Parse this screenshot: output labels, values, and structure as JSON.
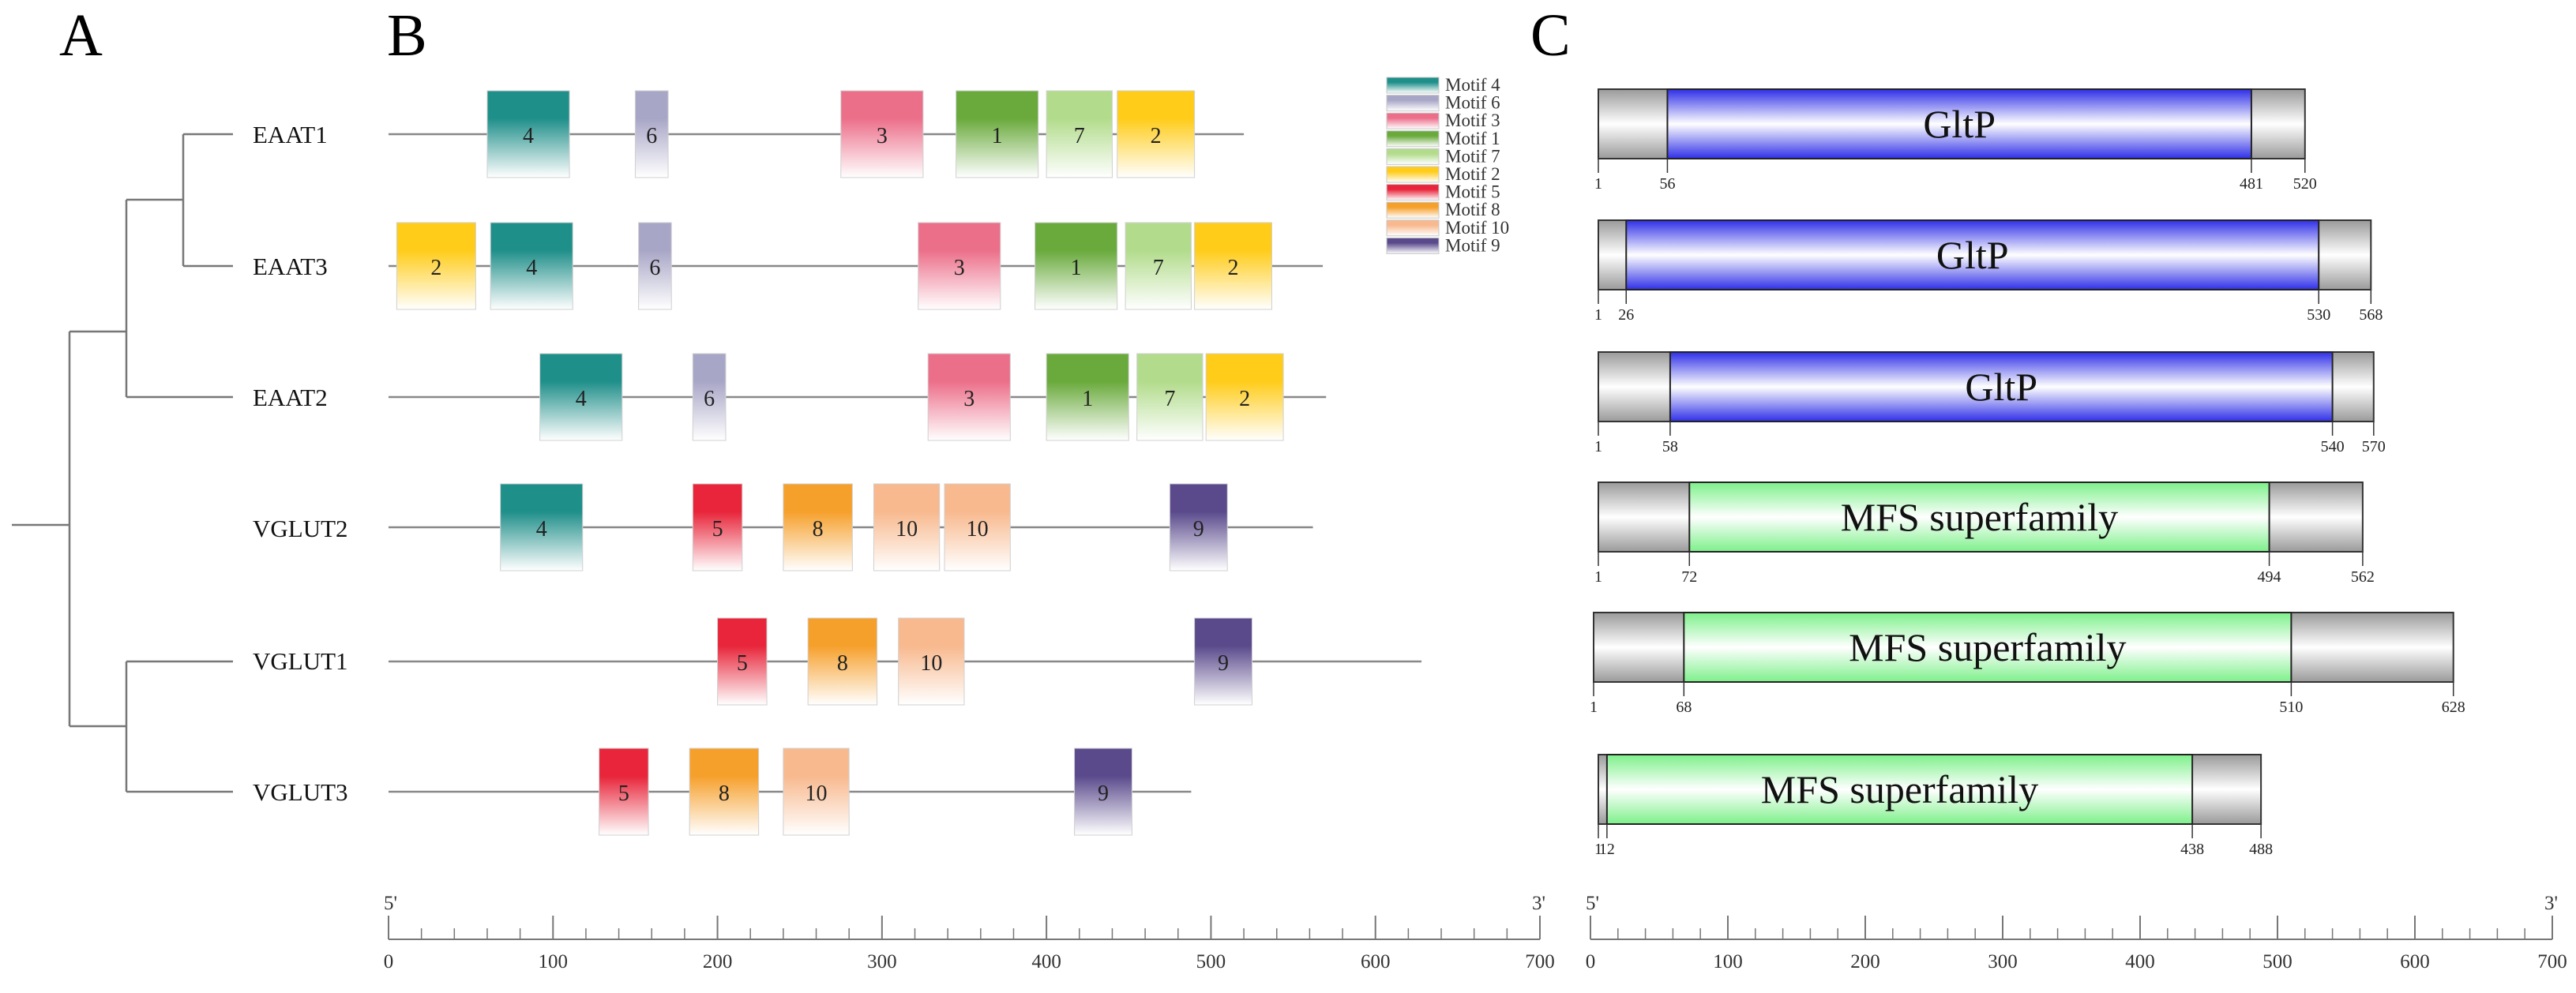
{
  "panels": {
    "a": "A",
    "b": "B",
    "c": "C"
  },
  "genes": [
    {
      "name": "EAAT1",
      "length": 520,
      "domain": {
        "label": "GltP",
        "kind": "gltp",
        "start": 56,
        "end": 481,
        "ticks": [
          "1",
          "56",
          "481",
          "520"
        ]
      },
      "motifs": [
        {
          "id": "4",
          "start": 60,
          "end": 110
        },
        {
          "id": "6",
          "start": 150,
          "end": 170
        },
        {
          "id": "3",
          "start": 275,
          "end": 325
        },
        {
          "id": "1",
          "start": 345,
          "end": 395
        },
        {
          "id": "7",
          "start": 400,
          "end": 440
        },
        {
          "id": "2",
          "start": 443,
          "end": 490
        }
      ]
    },
    {
      "name": "EAAT3",
      "length": 568,
      "domain": {
        "label": "GltP",
        "kind": "gltp",
        "start": 26,
        "end": 530,
        "ticks": [
          "1",
          "26",
          "530",
          "568"
        ]
      },
      "motifs": [
        {
          "id": "2",
          "start": 5,
          "end": 53
        },
        {
          "id": "4",
          "start": 62,
          "end": 112
        },
        {
          "id": "6",
          "start": 152,
          "end": 172
        },
        {
          "id": "3",
          "start": 322,
          "end": 372
        },
        {
          "id": "1",
          "start": 393,
          "end": 443
        },
        {
          "id": "7",
          "start": 448,
          "end": 488
        },
        {
          "id": "2",
          "start": 490,
          "end": 537
        }
      ]
    },
    {
      "name": "EAAT2",
      "length": 570,
      "domain": {
        "label": "GltP",
        "kind": "gltp",
        "start": 58,
        "end": 540,
        "ticks": [
          "1",
          "58",
          "540",
          "570"
        ]
      },
      "motifs": [
        {
          "id": "4",
          "start": 92,
          "end": 142
        },
        {
          "id": "6",
          "start": 185,
          "end": 205
        },
        {
          "id": "3",
          "start": 328,
          "end": 378
        },
        {
          "id": "1",
          "start": 400,
          "end": 450
        },
        {
          "id": "7",
          "start": 455,
          "end": 495
        },
        {
          "id": "2",
          "start": 497,
          "end": 544
        }
      ]
    },
    {
      "name": "VGLUT2",
      "length": 562,
      "domain": {
        "label": "MFS superfamily",
        "kind": "mfs",
        "start": 72,
        "end": 494,
        "ticks": [
          "1",
          "72",
          "494",
          "562"
        ]
      },
      "motifs": [
        {
          "id": "4",
          "start": 68,
          "end": 118
        },
        {
          "id": "5",
          "start": 185,
          "end": 215
        },
        {
          "id": "8",
          "start": 240,
          "end": 282
        },
        {
          "id": "10",
          "start": 295,
          "end": 335
        },
        {
          "id": "10",
          "start": 338,
          "end": 378
        },
        {
          "id": "9",
          "start": 475,
          "end": 510
        }
      ]
    },
    {
      "name": "VGLUT1",
      "length": 628,
      "domain": {
        "label": "MFS superfamily",
        "kind": "mfs",
        "start": 68,
        "end": 510,
        "ticks": [
          "1",
          "68",
          "510",
          "628"
        ]
      },
      "motifs": [
        {
          "id": "5",
          "start": 200,
          "end": 230
        },
        {
          "id": "8",
          "start": 255,
          "end": 297
        },
        {
          "id": "10",
          "start": 310,
          "end": 350
        },
        {
          "id": "9",
          "start": 490,
          "end": 525
        }
      ]
    },
    {
      "name": "VGLUT3",
      "length": 488,
      "domain": {
        "label": "MFS superfamily",
        "kind": "mfs",
        "start": 12,
        "end": 438,
        "ticks": [
          "1",
          "12",
          "438",
          "488"
        ]
      },
      "motifs": [
        {
          "id": "5",
          "start": 128,
          "end": 158
        },
        {
          "id": "8",
          "start": 183,
          "end": 225
        },
        {
          "id": "10",
          "start": 240,
          "end": 280
        },
        {
          "id": "9",
          "start": 417,
          "end": 452
        }
      ]
    }
  ],
  "legend": [
    {
      "id": "4",
      "label": "Motif 4",
      "color": "#1f8f8a"
    },
    {
      "id": "6",
      "label": "Motif 6",
      "color": "#a8a6c6"
    },
    {
      "id": "3",
      "label": "Motif 3",
      "color": "#ec6f8a"
    },
    {
      "id": "1",
      "label": "Motif 1",
      "color": "#6aaa3c"
    },
    {
      "id": "7",
      "label": "Motif 7",
      "color": "#b2dc8c"
    },
    {
      "id": "2",
      "label": "Motif 2",
      "color": "#ffcc1a"
    },
    {
      "id": "5",
      "label": "Motif 5",
      "color": "#e8253a"
    },
    {
      "id": "8",
      "label": "Motif 8",
      "color": "#f6a02c"
    },
    {
      "id": "10",
      "label": "Motif 10",
      "color": "#f8b98e"
    },
    {
      "id": "9",
      "label": "Motif 9",
      "color": "#5a4a8c"
    }
  ],
  "domain_colors": {
    "gltp": "#2f2fe8",
    "mfs": "#7df08a",
    "gray": "#9a9a9a"
  },
  "axis": {
    "max": 700,
    "ticks": [
      "0",
      "100",
      "200",
      "300",
      "400",
      "500",
      "600",
      "700"
    ],
    "five_prime": "5'",
    "three_prime": "3'"
  }
}
